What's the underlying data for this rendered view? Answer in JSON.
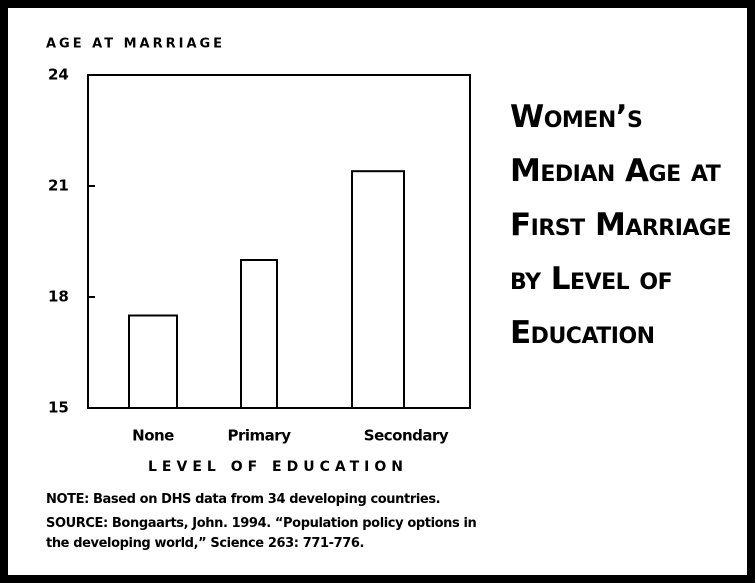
{
  "chart_data": {
    "type": "bar",
    "title": "Women’s Median Age at First Marriage by Level of Education",
    "y_label": "AGE AT MARRIAGE",
    "x_label": "LEVEL OF EDUCATION",
    "categories": [
      "None",
      "Primary",
      "Secondary"
    ],
    "values": [
      17.5,
      19,
      21.4
    ],
    "color": "#ffffff",
    "ylim": [
      15,
      24
    ],
    "yticks": [
      15,
      18,
      21,
      24
    ],
    "note": "NOTE: Based on DHS data from 34 developing countries.",
    "source": "SOURCE: Bongaarts, John. 1994. “Population policy options in the developing world,” Science 263: 771-776."
  }
}
